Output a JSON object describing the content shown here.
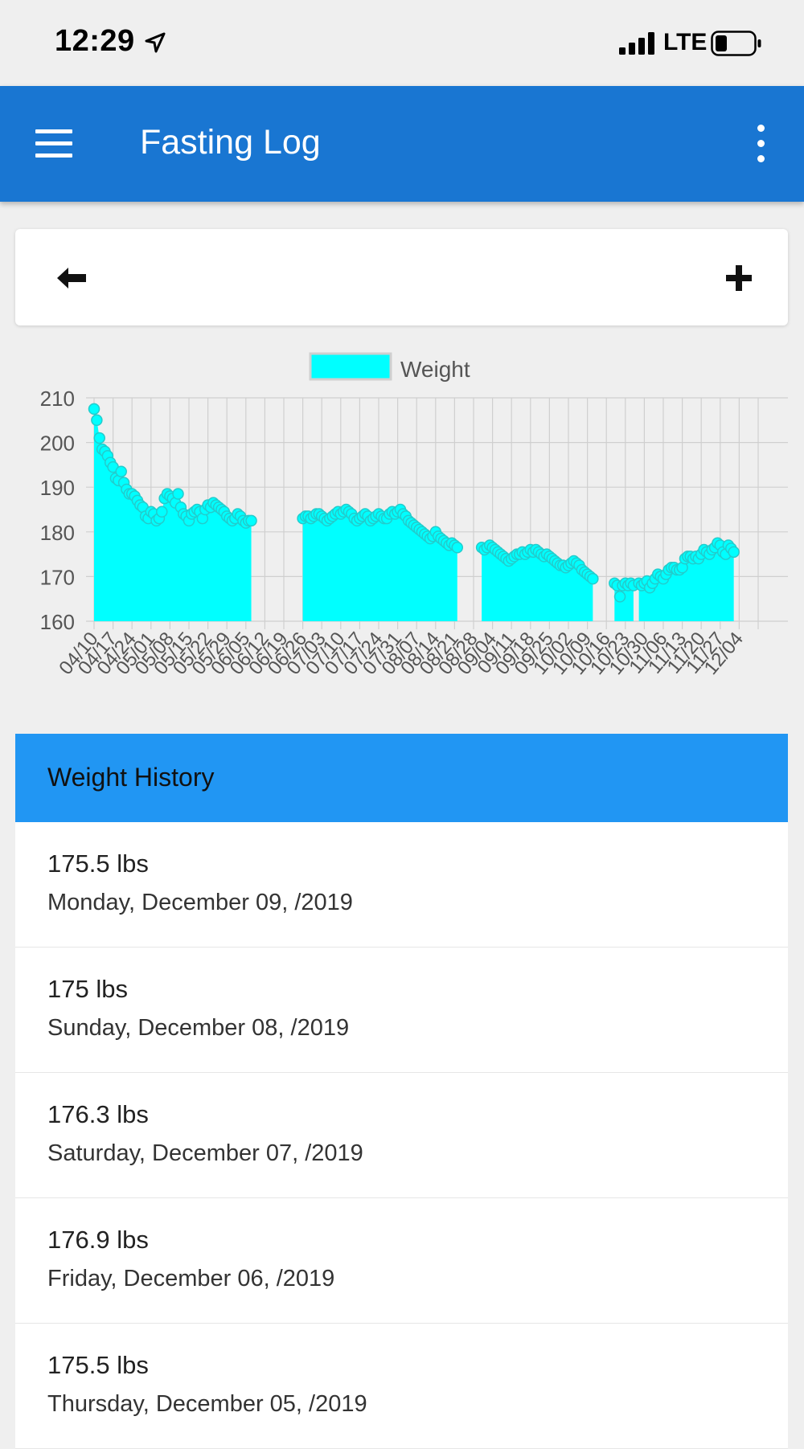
{
  "status_bar": {
    "time": "12:29",
    "network": "LTE"
  },
  "app_bar": {
    "title": "Fasting Log"
  },
  "icons": {
    "menu": "hamburger-menu-icon",
    "more": "more-vert-icon",
    "back": "arrow-left-icon",
    "add": "plus-icon",
    "location": "location-arrow-icon",
    "signal": "signal-bars-icon",
    "battery": "battery-icon"
  },
  "colors": {
    "app_bar": "#1976d2",
    "section_header": "#2196f3",
    "series_fill": "#00ffff",
    "series_border": "#22cccc"
  },
  "chart_data": {
    "type": "area",
    "legend": [
      "Weight"
    ],
    "legend_placement": "top-center",
    "grid": true,
    "ylim": [
      160,
      210
    ],
    "y_ticks": [
      160,
      170,
      180,
      190,
      200,
      210
    ],
    "x_tick_labels": [
      "04/10",
      "04/17",
      "04/24",
      "05/01",
      "05/08",
      "05/15",
      "05/22",
      "05/29",
      "06/05",
      "06/12",
      "06/19",
      "06/26",
      "07/03",
      "07/10",
      "07/17",
      "07/24",
      "07/31",
      "08/07",
      "08/14",
      "08/21",
      "08/28",
      "09/04",
      "09/11",
      "09/18",
      "09/25",
      "10/02",
      "10/09",
      "10/16",
      "10/23",
      "10/30",
      "11/06",
      "11/13",
      "11/20",
      "11/27",
      "12/04"
    ],
    "series": [
      {
        "name": "Weight",
        "segments": [
          {
            "start": "04/10",
            "values": [
              207.5,
              205,
              201,
              198.5,
              198,
              197,
              195.5,
              194.5,
              192,
              191.5,
              193.5,
              191,
              189.5,
              188.5,
              188.5,
              188,
              187,
              186,
              185.5,
              183.5,
              183,
              184.5,
              184,
              182.5,
              183,
              184.5,
              187.5,
              188.5,
              188,
              187.5,
              186.5,
              188.5,
              185.5,
              184,
              183.5,
              182.5,
              184,
              184.5,
              185,
              184.5,
              183,
              185,
              186,
              185.5,
              186.5,
              186,
              185.5,
              185,
              184.5,
              183.5,
              183,
              182.5,
              183,
              184,
              183.5,
              182.5,
              182,
              182.5,
              182.5
            ]
          },
          {
            "start": "06/26",
            "values": [
              183,
              183.5,
              183.5,
              183,
              183.5,
              184,
              184,
              183.5,
              183,
              182.5,
              183,
              183.5,
              184,
              184.5,
              184,
              184.5,
              185,
              184.5,
              184,
              183,
              182.5,
              183,
              183.5,
              184,
              183.5,
              182.5,
              183,
              183.5,
              184,
              183.5,
              183,
              183,
              184,
              184.5,
              184,
              184.5,
              185,
              184,
              183.5,
              182.5,
              182,
              181.5,
              181,
              180.5,
              180,
              179.5,
              179,
              178.5,
              179,
              180,
              179,
              178.5,
              178,
              177.5,
              177,
              177.5,
              177,
              176.5
            ]
          },
          {
            "start": "08/31",
            "values": [
              176.5,
              176,
              176.5,
              177,
              176.5,
              176,
              175.5,
              175,
              174.5,
              174,
              173.5,
              174,
              174.5,
              175,
              175,
              175.5,
              175,
              175.5,
              176,
              175.5,
              176,
              175.5,
              175,
              174.5,
              175,
              174.5,
              174,
              173.5,
              173,
              172.5,
              172.5,
              172,
              172.5,
              173,
              173.5,
              173,
              172.5,
              171.5,
              171,
              170.5,
              170,
              169.5
            ]
          },
          {
            "start": "10/19",
            "values": [
              168.5,
              168,
              165.5,
              168,
              168.5,
              168,
              168.5,
              168
            ]
          },
          {
            "start": "10/28",
            "values": [
              168.5,
              168,
              168.5,
              169,
              167.5,
              168.5,
              169.5,
              170.5,
              170,
              169.5,
              170.5,
              171.5,
              172,
              172,
              171.5,
              171.5,
              172,
              174,
              174.5,
              174.5,
              174,
              174.5,
              174,
              175,
              176,
              175.5,
              175,
              176,
              176.5,
              177.5,
              177,
              175.5,
              175,
              177,
              176.3,
              175.5
            ]
          }
        ]
      }
    ]
  },
  "history": {
    "title": "Weight History",
    "items": [
      {
        "weight": "175.5 lbs",
        "date": "Monday, December 09, /2019"
      },
      {
        "weight": "175 lbs",
        "date": "Sunday, December 08, /2019"
      },
      {
        "weight": "176.3 lbs",
        "date": "Saturday, December 07, /2019"
      },
      {
        "weight": "176.9 lbs",
        "date": "Friday, December 06, /2019"
      },
      {
        "weight": "175.5 lbs",
        "date": "Thursday, December 05, /2019"
      }
    ]
  }
}
